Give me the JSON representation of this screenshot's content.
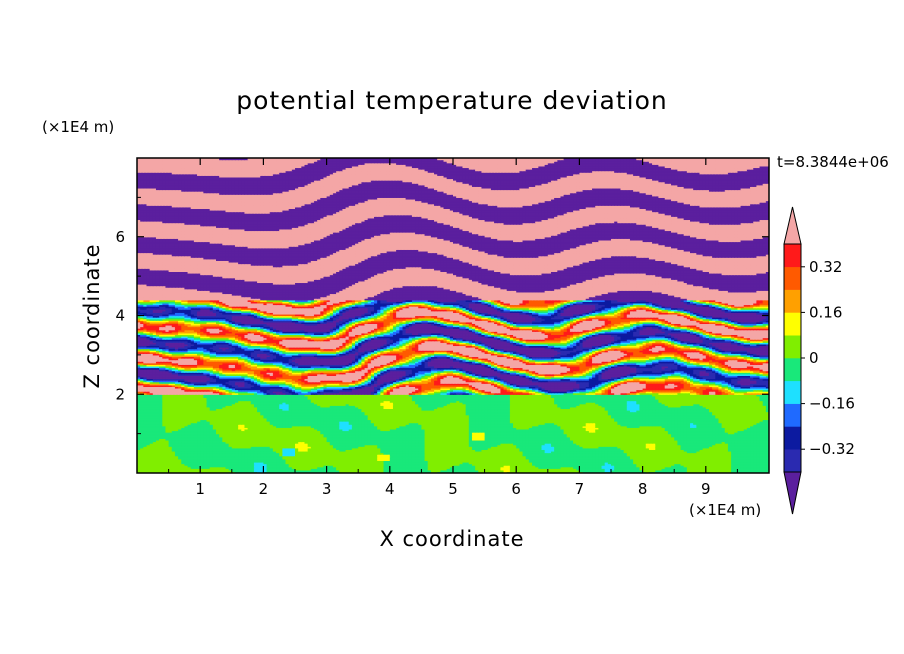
{
  "title": "potential temperature deviation",
  "time_label": "t=8.3844e+06",
  "x_axis": {
    "label": "X coordinate",
    "unit": "(×1E4 m)",
    "ticks": [
      "1",
      "2",
      "3",
      "4",
      "5",
      "6",
      "7",
      "8",
      "9"
    ]
  },
  "z_axis": {
    "label": "Z coordinate",
    "unit": "(×1E4 m)",
    "ticks": [
      "2",
      "4",
      "6"
    ]
  },
  "colorbar": {
    "labels": [
      "0.32",
      "0.16",
      "0",
      "-0.16",
      "-0.32"
    ],
    "label_values": [
      0.32,
      0.16,
      0,
      -0.16,
      -0.32
    ],
    "levels": [
      -0.4,
      -0.32,
      -0.24,
      -0.16,
      -0.08,
      0,
      0.08,
      0.16,
      0.24,
      0.32,
      0.4
    ],
    "colors": [
      "#5b1f9e",
      "#2a2ab0",
      "#0c1aa0",
      "#1f6aff",
      "#1ee0ff",
      "#19e87a",
      "#80ee00",
      "#ffff00",
      "#ffa000",
      "#ff5a00",
      "#ff1a1a",
      "#f4a6a6"
    ]
  },
  "chart_data": {
    "type": "heatmap",
    "title": "potential temperature deviation",
    "xlabel": "X coordinate",
    "ylabel": "Z coordinate",
    "x_unit": "×1E4 m",
    "z_unit": "×1E4 m",
    "xlim": [
      0,
      10
    ],
    "ylim": [
      0,
      8
    ],
    "x_ticks": [
      1,
      2,
      3,
      4,
      5,
      6,
      7,
      8,
      9
    ],
    "z_ticks": [
      2,
      4,
      6
    ],
    "time": "t=8.3844e+06",
    "colorbar_range": [
      -0.4,
      0.4
    ],
    "colorbar_extend": "both",
    "layers": [
      {
        "z_range": [
          0,
          2.0
        ],
        "values": [
          0.02,
          -0.02
        ],
        "description_values": "mostly near 0"
      },
      {
        "z_range": [
          2.0,
          4.8
        ],
        "values": [
          -0.4,
          0.4
        ]
      },
      {
        "z_range": [
          4.8,
          8.0
        ],
        "values": [
          -0.4,
          0.4
        ]
      }
    ]
  }
}
